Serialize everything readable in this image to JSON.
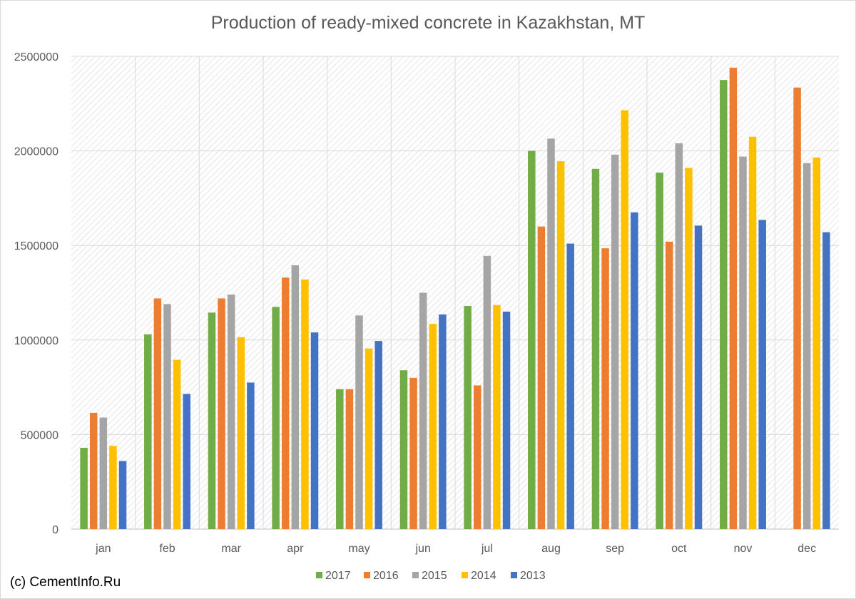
{
  "chart_data": {
    "type": "bar",
    "title": "Production of ready-mixed concrete in Kazakhstan, MT",
    "xlabel": "",
    "ylabel": "",
    "ylim": [
      0,
      2500000
    ],
    "yticks": [
      0,
      500000,
      1000000,
      1500000,
      2000000,
      2500000
    ],
    "ytick_labels": [
      "0",
      "500000",
      "1000000",
      "1500000",
      "2000000",
      "2500000"
    ],
    "grid": true,
    "legend_position": "bottom",
    "categories": [
      "jan",
      "feb",
      "mar",
      "apr",
      "may",
      "jun",
      "jul",
      "aug",
      "sep",
      "oct",
      "nov",
      "dec"
    ],
    "series": [
      {
        "name": "2017",
        "color": "#70ad47",
        "values": [
          430000,
          1030000,
          1145000,
          1175000,
          740000,
          840000,
          1180000,
          2000000,
          1905000,
          1885000,
          2375000,
          null
        ]
      },
      {
        "name": "2016",
        "color": "#ed7d31",
        "values": [
          615000,
          1220000,
          1220000,
          1330000,
          740000,
          800000,
          760000,
          1600000,
          1485000,
          1520000,
          2440000,
          2335000
        ]
      },
      {
        "name": "2015",
        "color": "#a5a5a5",
        "values": [
          590000,
          1190000,
          1240000,
          1395000,
          1130000,
          1250000,
          1445000,
          2065000,
          1980000,
          2040000,
          1970000,
          1935000
        ]
      },
      {
        "name": "2014",
        "color": "#ffc000",
        "values": [
          440000,
          895000,
          1015000,
          1320000,
          955000,
          1085000,
          1185000,
          1945000,
          2215000,
          1910000,
          2075000,
          1965000
        ]
      },
      {
        "name": "2013",
        "color": "#4472c4",
        "values": [
          360000,
          715000,
          775000,
          1040000,
          995000,
          1135000,
          1150000,
          1510000,
          1675000,
          1605000,
          1635000,
          1570000
        ]
      }
    ]
  },
  "footer": {
    "copyright": "(c) CementInfo.Ru"
  }
}
